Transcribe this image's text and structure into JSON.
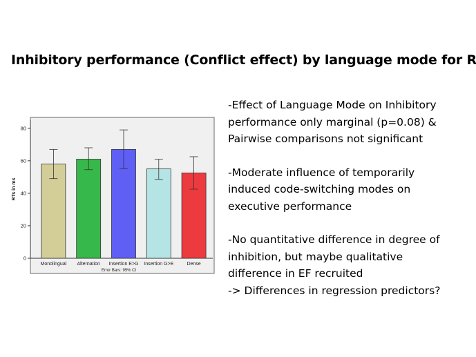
{
  "slide": {
    "title": "Inhibitory performance (Conflict effect) by language mode for RTs"
  },
  "notes": [
    [
      "-Effect of Language Mode on Inhibitory",
      "performance only marginal (p=0.08) &",
      "Pairwise comparisons not significant"
    ],
    [
      "-Moderate influence of temporarily",
      "induced code-switching modes on",
      "executive performance"
    ],
    [
      "-No quantitative difference in degree of",
      "inhibition, but maybe qualitative",
      "difference in EF recruited",
      "-> Differences in regression predictors?"
    ]
  ],
  "chart_data": {
    "type": "bar",
    "categories": [
      "Monolingual",
      "Alternation",
      "Insertion E>G",
      "Insertion G>E",
      "Dense"
    ],
    "values": [
      58,
      61,
      67,
      55,
      52.5
    ],
    "error_bars": [
      [
        49,
        67
      ],
      [
        54.5,
        68
      ],
      [
        55,
        79
      ],
      [
        48.5,
        61
      ],
      [
        42.5,
        62.5
      ]
    ],
    "colors": [
      "#d3cd98",
      "#37b84a",
      "#5f5ff5",
      "#b5e4e4",
      "#ec3a3f"
    ],
    "ylabel": "RTs in ms",
    "xlabel": "",
    "caption": "Error Bars: 95% CI",
    "ylim": [
      0,
      85
    ],
    "yticks": [
      0,
      20,
      40,
      60,
      80
    ],
    "grid": false,
    "background": "#f0f0f0"
  }
}
